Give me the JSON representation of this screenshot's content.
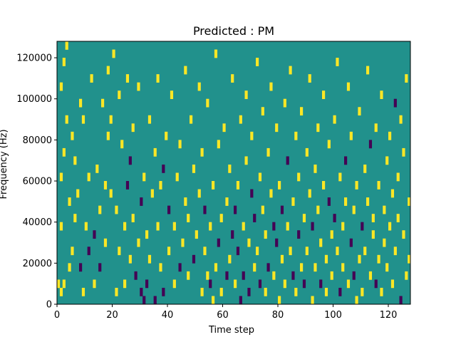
{
  "chart_data": {
    "type": "heatmap",
    "title": "Predicted : PM",
    "xlabel": "Time step",
    "ylabel": "Frequency (Hz)",
    "xlim": [
      0,
      128
    ],
    "ylim": [
      0,
      128000
    ],
    "x_ticks": [
      0,
      20,
      40,
      60,
      80,
      100,
      120
    ],
    "y_ticks": [
      0,
      20000,
      40000,
      60000,
      80000,
      100000,
      120000
    ],
    "x_tick_labels": [
      "0",
      "20",
      "40",
      "60",
      "80",
      "100",
      "120"
    ],
    "y_tick_labels": [
      "0",
      "20000",
      "40000",
      "60000",
      "80000",
      "100000",
      "120000"
    ],
    "grid": false,
    "levels": [
      -1,
      0,
      1
    ],
    "colors": {
      "-1": "#440154",
      "0": "#21918c",
      "1": "#fde725"
    },
    "background_level": 0,
    "note_bins": 32,
    "bin_width_hz": 4000,
    "cells": [
      [
        0,
        2,
        1
      ],
      [
        1,
        1,
        1
      ],
      [
        2,
        2,
        1
      ],
      [
        1,
        9,
        1
      ],
      [
        1,
        15,
        1
      ],
      [
        2,
        18,
        1
      ],
      [
        1,
        26,
        1
      ],
      [
        2,
        29,
        1
      ],
      [
        3,
        31,
        1
      ],
      [
        3,
        22,
        1
      ],
      [
        4,
        12,
        1
      ],
      [
        4,
        4,
        1
      ],
      [
        5,
        6,
        1
      ],
      [
        5,
        20,
        1
      ],
      [
        6,
        10,
        1
      ],
      [
        6,
        17,
        1
      ],
      [
        7,
        13,
        1
      ],
      [
        8,
        4,
        -1
      ],
      [
        8,
        24,
        1
      ],
      [
        9,
        1,
        1
      ],
      [
        9,
        22,
        1
      ],
      [
        10,
        9,
        1
      ],
      [
        11,
        15,
        1
      ],
      [
        11,
        6,
        -1
      ],
      [
        12,
        27,
        1
      ],
      [
        13,
        8,
        -1
      ],
      [
        13,
        2,
        1
      ],
      [
        14,
        16,
        1
      ],
      [
        15,
        4,
        -1
      ],
      [
        15,
        11,
        1
      ],
      [
        16,
        24,
        1
      ],
      [
        17,
        7,
        1
      ],
      [
        17,
        14,
        1
      ],
      [
        18,
        20,
        1
      ],
      [
        18,
        28,
        1
      ],
      [
        19,
        13,
        1
      ],
      [
        19,
        22,
        1
      ],
      [
        20,
        30,
        1
      ],
      [
        21,
        1,
        1
      ],
      [
        21,
        11,
        1
      ],
      [
        22,
        6,
        1
      ],
      [
        22,
        25,
        1
      ],
      [
        23,
        19,
        1
      ],
      [
        24,
        9,
        1
      ],
      [
        24,
        2,
        1
      ],
      [
        25,
        14,
        -1
      ],
      [
        25,
        27,
        1
      ],
      [
        26,
        5,
        1
      ],
      [
        26,
        17,
        -1
      ],
      [
        27,
        10,
        1
      ],
      [
        27,
        21,
        1
      ],
      [
        28,
        3,
        -1
      ],
      [
        29,
        7,
        1
      ],
      [
        29,
        26,
        1
      ],
      [
        30,
        12,
        -1
      ],
      [
        30,
        1,
        -1
      ],
      [
        31,
        0,
        -1
      ],
      [
        31,
        15,
        1
      ],
      [
        32,
        8,
        1
      ],
      [
        32,
        2,
        -1
      ],
      [
        33,
        22,
        1
      ],
      [
        33,
        5,
        1
      ],
      [
        34,
        13,
        1
      ],
      [
        35,
        18,
        1
      ],
      [
        35,
        0,
        -1
      ],
      [
        36,
        9,
        1
      ],
      [
        36,
        27,
        1
      ],
      [
        37,
        4,
        1
      ],
      [
        37,
        14,
        1
      ],
      [
        38,
        16,
        -1
      ],
      [
        38,
        1,
        -1
      ],
      [
        39,
        20,
        1
      ],
      [
        40,
        6,
        1
      ],
      [
        40,
        11,
        -1
      ],
      [
        41,
        25,
        1
      ],
      [
        42,
        2,
        1
      ],
      [
        42,
        9,
        1
      ],
      [
        43,
        15,
        1
      ],
      [
        44,
        4,
        -1
      ],
      [
        44,
        19,
        1
      ],
      [
        45,
        7,
        1
      ],
      [
        46,
        12,
        1
      ],
      [
        46,
        28,
        1
      ],
      [
        47,
        3,
        1
      ],
      [
        47,
        10,
        1
      ],
      [
        48,
        22,
        1
      ],
      [
        49,
        16,
        1
      ],
      [
        49,
        5,
        -1
      ],
      [
        50,
        8,
        1
      ],
      [
        51,
        13,
        1
      ],
      [
        51,
        26,
        1
      ],
      [
        52,
        1,
        1
      ],
      [
        52,
        18,
        1
      ],
      [
        53,
        6,
        1
      ],
      [
        53,
        11,
        -1
      ],
      [
        54,
        3,
        1
      ],
      [
        54,
        24,
        1
      ],
      [
        55,
        2,
        -1
      ],
      [
        55,
        9,
        1
      ],
      [
        56,
        0,
        1
      ],
      [
        56,
        14,
        1
      ],
      [
        57,
        4,
        1
      ],
      [
        57,
        30,
        1
      ],
      [
        58,
        7,
        -1
      ],
      [
        58,
        19,
        1
      ],
      [
        59,
        10,
        1
      ],
      [
        59,
        1,
        1
      ],
      [
        60,
        21,
        1
      ],
      [
        61,
        3,
        -1
      ],
      [
        61,
        12,
        1
      ],
      [
        62,
        5,
        1
      ],
      [
        62,
        16,
        1
      ],
      [
        63,
        8,
        -1
      ],
      [
        63,
        27,
        1
      ],
      [
        64,
        2,
        1
      ],
      [
        64,
        11,
        -1
      ],
      [
        65,
        6,
        -1
      ],
      [
        65,
        14,
        1
      ],
      [
        66,
        0,
        -1
      ],
      [
        66,
        22,
        1
      ],
      [
        67,
        9,
        1
      ],
      [
        67,
        3,
        -1
      ],
      [
        68,
        17,
        1
      ],
      [
        68,
        25,
        1
      ],
      [
        69,
        7,
        1
      ],
      [
        69,
        1,
        -1
      ],
      [
        70,
        13,
        -1
      ],
      [
        70,
        20,
        1
      ],
      [
        71,
        4,
        1
      ],
      [
        71,
        10,
        -1
      ],
      [
        72,
        6,
        1
      ],
      [
        72,
        29,
        1
      ],
      [
        73,
        2,
        -1
      ],
      [
        73,
        15,
        1
      ],
      [
        74,
        11,
        1
      ],
      [
        74,
        23,
        1
      ],
      [
        75,
        8,
        1
      ],
      [
        75,
        1,
        1
      ],
      [
        76,
        18,
        1
      ],
      [
        76,
        4,
        -1
      ],
      [
        77,
        13,
        1
      ],
      [
        77,
        26,
        1
      ],
      [
        78,
        9,
        -1
      ],
      [
        78,
        3,
        1
      ],
      [
        79,
        21,
        1
      ],
      [
        79,
        7,
        -1
      ],
      [
        80,
        0,
        1
      ],
      [
        80,
        14,
        1
      ],
      [
        81,
        5,
        1
      ],
      [
        81,
        11,
        -1
      ],
      [
        82,
        24,
        1
      ],
      [
        82,
        2,
        1
      ],
      [
        83,
        9,
        1
      ],
      [
        83,
        17,
        -1
      ],
      [
        84,
        6,
        1
      ],
      [
        84,
        28,
        1
      ],
      [
        85,
        3,
        -1
      ],
      [
        85,
        12,
        1
      ],
      [
        86,
        20,
        1
      ],
      [
        86,
        1,
        1
      ],
      [
        87,
        8,
        -1
      ],
      [
        87,
        15,
        1
      ],
      [
        88,
        4,
        1
      ],
      [
        88,
        23,
        1
      ],
      [
        89,
        10,
        1
      ],
      [
        89,
        2,
        -1
      ],
      [
        90,
        18,
        1
      ],
      [
        90,
        6,
        1
      ],
      [
        91,
        13,
        1
      ],
      [
        91,
        27,
        1
      ],
      [
        92,
        0,
        1
      ],
      [
        92,
        9,
        -1
      ],
      [
        93,
        16,
        1
      ],
      [
        93,
        4,
        1
      ],
      [
        94,
        21,
        1
      ],
      [
        94,
        11,
        1
      ],
      [
        95,
        2,
        -1
      ],
      [
        95,
        7,
        1
      ],
      [
        96,
        14,
        1
      ],
      [
        96,
        25,
        1
      ],
      [
        97,
        5,
        1
      ],
      [
        97,
        1,
        1
      ],
      [
        98,
        12,
        -1
      ],
      [
        98,
        19,
        1
      ],
      [
        99,
        8,
        1
      ],
      [
        99,
        3,
        1
      ],
      [
        100,
        22,
        1
      ],
      [
        100,
        10,
        -1
      ],
      [
        101,
        6,
        1
      ],
      [
        101,
        29,
        1
      ],
      [
        102,
        1,
        -1
      ],
      [
        102,
        15,
        1
      ],
      [
        103,
        9,
        1
      ],
      [
        103,
        4,
        1
      ],
      [
        104,
        17,
        -1
      ],
      [
        104,
        12,
        1
      ],
      [
        105,
        2,
        1
      ],
      [
        105,
        26,
        1
      ],
      [
        106,
        7,
        -1
      ],
      [
        106,
        20,
        1
      ],
      [
        107,
        11,
        1
      ],
      [
        107,
        3,
        -1
      ],
      [
        108,
        14,
        1
      ],
      [
        108,
        0,
        1
      ],
      [
        109,
        5,
        1
      ],
      [
        109,
        23,
        1
      ],
      [
        110,
        9,
        -1
      ],
      [
        110,
        1,
        1
      ],
      [
        111,
        16,
        1
      ],
      [
        111,
        6,
        1
      ],
      [
        112,
        12,
        1
      ],
      [
        112,
        28,
        1
      ],
      [
        113,
        3,
        1
      ],
      [
        113,
        19,
        -1
      ],
      [
        114,
        8,
        1
      ],
      [
        114,
        10,
        1
      ],
      [
        115,
        2,
        -1
      ],
      [
        115,
        21,
        1
      ],
      [
        116,
        5,
        1
      ],
      [
        116,
        14,
        1
      ],
      [
        117,
        25,
        1
      ],
      [
        117,
        1,
        1
      ],
      [
        118,
        7,
        1
      ],
      [
        118,
        11,
        1
      ],
      [
        119,
        4,
        1
      ],
      [
        119,
        17,
        1
      ],
      [
        120,
        9,
        1
      ],
      [
        120,
        20,
        1
      ],
      [
        121,
        13,
        1
      ],
      [
        121,
        2,
        1
      ],
      [
        122,
        6,
        1
      ],
      [
        122,
        24,
        -1
      ],
      [
        123,
        15,
        1
      ],
      [
        123,
        10,
        1
      ],
      [
        124,
        0,
        -1
      ],
      [
        124,
        22,
        1
      ],
      [
        125,
        8,
        1
      ],
      [
        125,
        18,
        1
      ],
      [
        126,
        3,
        1
      ],
      [
        126,
        27,
        1
      ],
      [
        127,
        12,
        1
      ],
      [
        127,
        5,
        1
      ]
    ]
  }
}
